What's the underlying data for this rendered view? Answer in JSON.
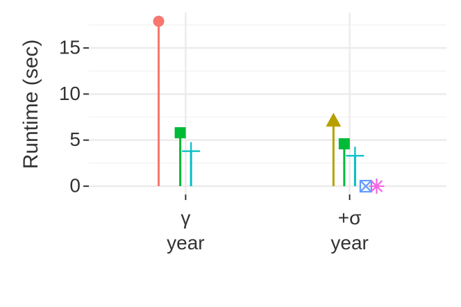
{
  "chart_data": {
    "type": "lollipop",
    "y_label": "Runtime (sec)",
    "categories": [
      "γ\nyear",
      "+σ\nyear"
    ],
    "series": [
      {
        "color": "#F8766D",
        "marker": "circle",
        "values": [
          17.9,
          null
        ]
      },
      {
        "color": "#B79F00",
        "marker": "triangle",
        "values": [
          null,
          7.0
        ]
      },
      {
        "color": "#00BA38",
        "marker": "square",
        "values": [
          5.8,
          4.6
        ]
      },
      {
        "color": "#00BFC4",
        "marker": "plus",
        "values": [
          3.8,
          3.3
        ]
      },
      {
        "color": "#619CFF",
        "marker": "square-cross",
        "values": [
          null,
          0
        ]
      },
      {
        "color": "#F564E3",
        "marker": "asterisk",
        "values": [
          null,
          0
        ]
      }
    ],
    "ylim": [
      -0.9,
      18.85
    ],
    "yticks": [
      0,
      5,
      10,
      15
    ],
    "grid": true
  }
}
